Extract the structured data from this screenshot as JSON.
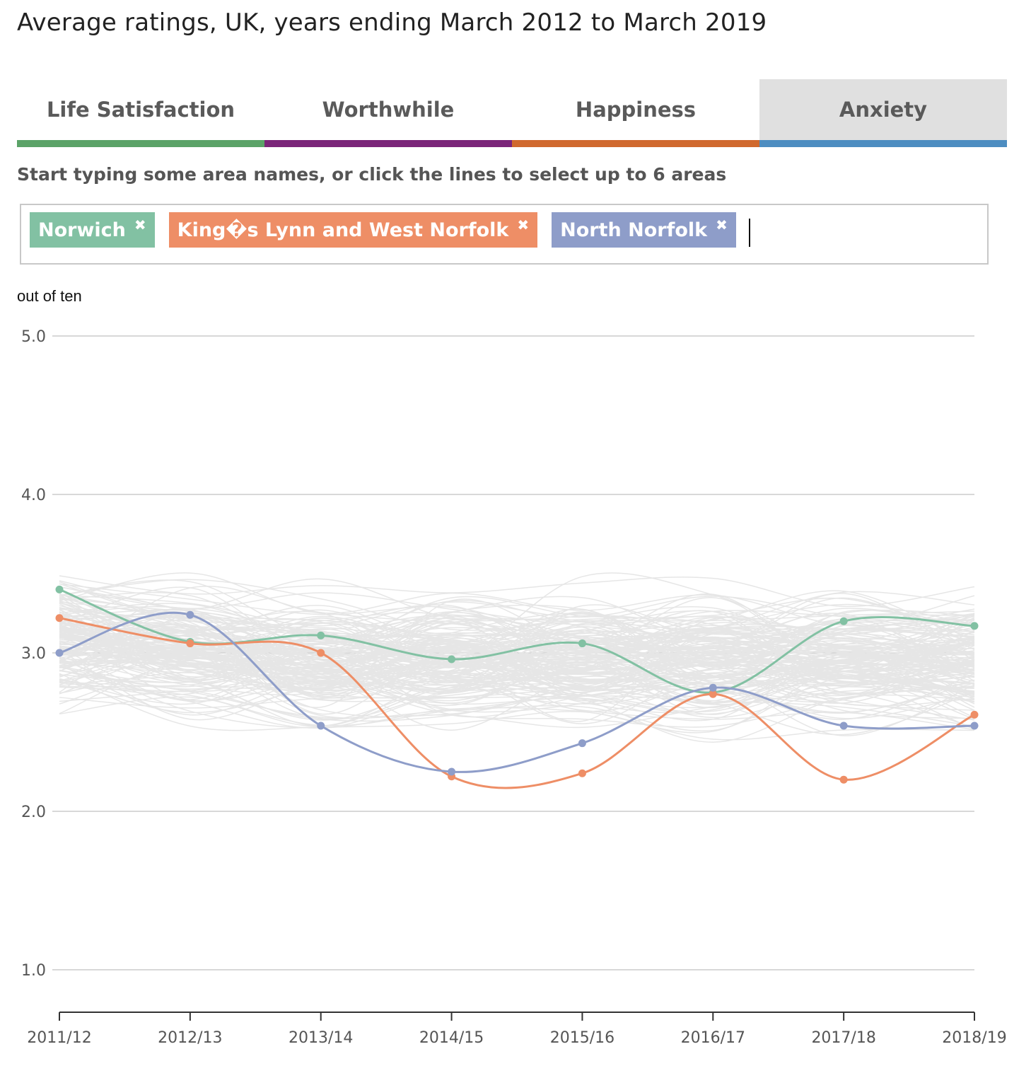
{
  "title": "Average ratings, UK, years ending March 2012 to March 2019",
  "tabs": [
    {
      "label": "Life Satisfaction",
      "color": "#5ba368",
      "active": false
    },
    {
      "label": "Worthwhile",
      "color": "#7b2579",
      "active": false
    },
    {
      "label": "Happiness",
      "color": "#d0692e",
      "active": false
    },
    {
      "label": "Anxiety",
      "color": "#4d8dc1",
      "active": true
    }
  ],
  "instruction": "Start typing some area names, or click the lines to select up to 6 areas",
  "selected_areas": [
    {
      "name": "Norwich",
      "color": "#82c1a3",
      "remove_icon": "close-icon"
    },
    {
      "name": "King�s Lynn and West Norfolk",
      "color": "#ee8e66",
      "remove_icon": "close-icon"
    },
    {
      "name": "North Norfolk",
      "color": "#8e9dc9",
      "remove_icon": "close-icon"
    }
  ],
  "chart_data": {
    "type": "line",
    "ylabel": "out of ten",
    "ylim": [
      1.0,
      5.0
    ],
    "yticks": [
      "1.0",
      "2.0",
      "3.0",
      "4.0",
      "5.0"
    ],
    "categories": [
      "2011/12",
      "2012/13",
      "2013/14",
      "2014/15",
      "2015/16",
      "2016/17",
      "2017/18",
      "2018/19"
    ],
    "grid": true,
    "background_series_color": "#e6e6e6",
    "series": [
      {
        "name": "Norwich",
        "color": "#82c1a3",
        "values": [
          3.4,
          3.07,
          3.11,
          2.96,
          3.06,
          2.75,
          3.2,
          3.17
        ]
      },
      {
        "name": "King�s Lynn and West Norfolk",
        "color": "#ee8e66",
        "values": [
          3.22,
          3.06,
          3.0,
          2.22,
          2.24,
          2.74,
          2.2,
          2.61
        ]
      },
      {
        "name": "North Norfolk",
        "color": "#8e9dc9",
        "values": [
          3.0,
          3.24,
          2.54,
          2.25,
          2.43,
          2.78,
          2.54,
          2.54
        ]
      }
    ]
  }
}
